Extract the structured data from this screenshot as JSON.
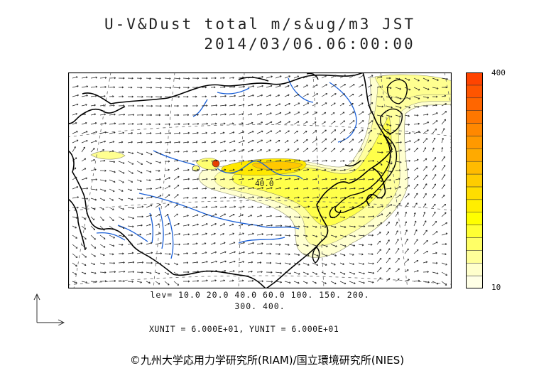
{
  "header": {
    "title": "U-V&Dust total m/s&ug/m3 JST",
    "datetime": "2014/03/06.06:00:00"
  },
  "map": {
    "region": "East Asia",
    "contour_label": "40.0",
    "colors": {
      "land_outline": "#000000",
      "rivers": "#1a5fd6",
      "grid": "#666666",
      "arrows": "#222222"
    }
  },
  "colorbar": {
    "max_label": "400",
    "min_label": "10",
    "colors": [
      "#ffffe6",
      "#ffffcc",
      "#ffff99",
      "#ffff66",
      "#ffff33",
      "#ffff00",
      "#ffee00",
      "#ffdd00",
      "#ffcc00",
      "#ffbb00",
      "#ffaa00",
      "#ff9900",
      "#ff8800",
      "#ff7700",
      "#ff6600",
      "#ff5500",
      "#ff4400"
    ]
  },
  "levels": {
    "line1": "lev= 10.0 20.0 40.0 60.0 100. 150. 200.",
    "line2": "300. 400."
  },
  "units": {
    "text": "XUNIT = 6.000E+01, YUNIT = 6.000E+01"
  },
  "footer": {
    "credit": "©九州大学応用力学研究所(RIAM)/国立環境研究所(NIES)"
  }
}
